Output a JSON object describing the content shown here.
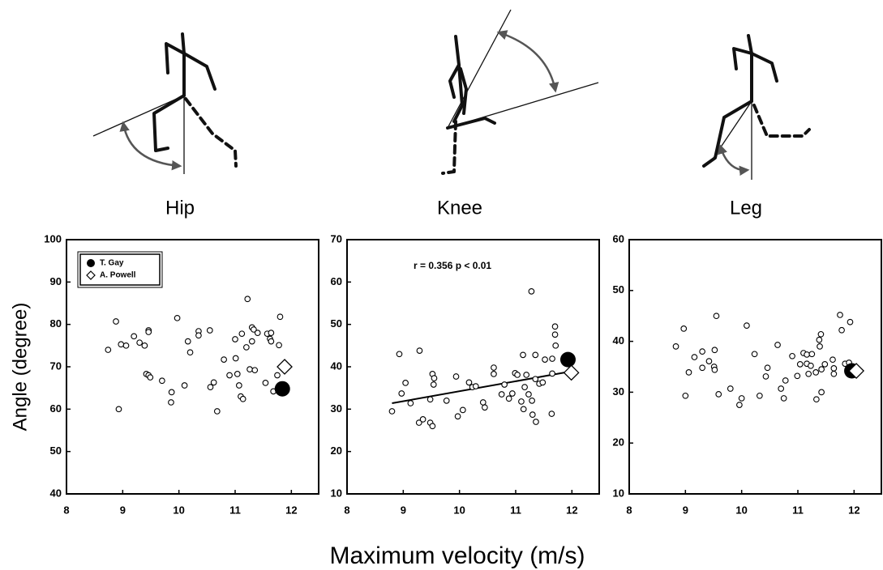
{
  "chart_data": [
    {
      "type": "scatter",
      "title": "Hip",
      "ylabel": "Angle (degree)",
      "legend": "upper left",
      "xlim": [
        8,
        12.5
      ],
      "xticks": [
        8,
        9,
        10,
        11,
        12
      ],
      "ylim": [
        40,
        100
      ],
      "yticks": [
        40,
        50,
        60,
        70,
        80,
        90,
        100
      ],
      "series": [
        {
          "marker": "open-circle",
          "color": "#000000",
          "x": [
            8.74,
            8.88,
            8.93,
            8.97,
            9.06,
            9.2,
            9.3,
            9.39,
            9.46,
            9.46,
            9.42,
            9.46,
            9.49,
            9.7,
            9.87,
            9.86,
            9.97,
            10.1,
            10.16,
            10.2,
            10.35,
            10.35,
            10.55,
            10.56,
            10.62,
            10.68,
            10.8,
            10.9,
            11,
            11.01,
            11.04,
            11.1,
            11.14,
            11.07,
            11.12,
            11.2,
            11.22,
            11.26,
            11.3,
            11.3,
            11.33,
            11.35,
            11.4,
            11.54,
            11.57,
            11.64,
            11.62,
            11.64,
            11.68,
            11.75,
            11.8,
            11.78
          ],
          "y": [
            74,
            80.7,
            60,
            75.3,
            75,
            77.2,
            75.7,
            75,
            78.6,
            78.2,
            68.3,
            68,
            67.5,
            66.7,
            64,
            61.6,
            81.5,
            65.6,
            76,
            73.4,
            78.4,
            77.4,
            78.6,
            65.2,
            66.3,
            59.5,
            71.7,
            68,
            76.5,
            72,
            68.3,
            63,
            62.4,
            65.6,
            77.8,
            74.6,
            86,
            69.4,
            76,
            79.3,
            78.8,
            69.2,
            78,
            66.2,
            77.8,
            78,
            76.6,
            76,
            64.2,
            68,
            81.8,
            75.1
          ]
        },
        {
          "name": "T. Gay",
          "marker": "filled-circle",
          "color": "#000000",
          "x": [
            11.84
          ],
          "y": [
            64.8
          ]
        },
        {
          "name": "A. Powell",
          "marker": "diamond",
          "color": "#000000",
          "x": [
            11.88
          ],
          "y": [
            70
          ]
        }
      ]
    },
    {
      "type": "scatter",
      "title": "Knee",
      "xlabel": "Maximum velocity (m/s)",
      "annotation": "r = 0.356  p < 0.01",
      "xlim": [
        8,
        12.5
      ],
      "xticks": [
        8,
        9,
        10,
        11,
        12
      ],
      "ylim": [
        10,
        70
      ],
      "yticks": [
        10,
        20,
        30,
        40,
        50,
        60,
        70
      ],
      "trendline": {
        "x": [
          8.8,
          11.94
        ],
        "y": [
          31.4,
          38.8
        ]
      },
      "series": [
        {
          "marker": "open-circle",
          "color": "#000000",
          "x": [
            8.8,
            8.93,
            8.97,
            9.04,
            9.13,
            9.28,
            9.29,
            9.35,
            9.48,
            9.52,
            9.52,
            9.54,
            9.55,
            9.48,
            9.77,
            9.94,
            9.97,
            10.06,
            10.17,
            10.23,
            10.29,
            10.42,
            10.45,
            10.61,
            10.61,
            10.75,
            10.8,
            10.88,
            10.94,
            10.99,
            11.03,
            11.13,
            11.16,
            11.1,
            11.14,
            11.19,
            11.28,
            11.23,
            11.29,
            11.3,
            11.36,
            11.35,
            11.35,
            11.42,
            11.48,
            11.52,
            11.64,
            11.7,
            11.7,
            11.71,
            11.65,
            11.65
          ],
          "y": [
            29.5,
            43,
            33.7,
            36.2,
            31.4,
            26.8,
            43.8,
            27.6,
            26.8,
            26,
            38.3,
            35.8,
            37.3,
            32.3,
            32,
            37.7,
            28.3,
            29.8,
            36.3,
            35.2,
            35.4,
            31.6,
            30.4,
            38.3,
            39.8,
            33.5,
            35.8,
            32.5,
            33.7,
            38.5,
            38.1,
            42.8,
            35.2,
            31.8,
            30,
            38.1,
            57.8,
            33.5,
            32,
            28.7,
            27,
            37.1,
            42.8,
            36,
            36.3,
            41.7,
            28.9,
            49.5,
            47.6,
            45,
            41.9,
            38.4
          ]
        },
        {
          "marker": "filled-circle",
          "color": "#000000",
          "x": [
            11.93
          ],
          "y": [
            41.7
          ]
        },
        {
          "marker": "diamond",
          "color": "#000000",
          "x": [
            11.99
          ],
          "y": [
            38.6
          ]
        }
      ]
    },
    {
      "type": "scatter",
      "title": "Leg",
      "xlim": [
        8,
        12.5
      ],
      "xticks": [
        8,
        9,
        10,
        11,
        12
      ],
      "ylim": [
        10,
        60
      ],
      "yticks": [
        10,
        20,
        30,
        40,
        50,
        60
      ],
      "series": [
        {
          "marker": "open-circle",
          "color": "#000000",
          "x": [
            8.83,
            8.97,
            9,
            9.06,
            9.16,
            9.3,
            9.3,
            9.42,
            9.52,
            9.51,
            9.52,
            9.55,
            9.59,
            9.8,
            9.96,
            10,
            10.09,
            10.23,
            10.32,
            10.43,
            10.46,
            10.64,
            10.7,
            10.75,
            10.78,
            10.9,
            10.99,
            11.04,
            11.1,
            11.16,
            11.16,
            11.19,
            11.23,
            11.25,
            11.32,
            11.33,
            11.38,
            11.41,
            11.39,
            11.42,
            11.42,
            11.48,
            11.62,
            11.64,
            11.64,
            11.75,
            11.78,
            11.84,
            11.93,
            11.91
          ],
          "y": [
            39,
            42.5,
            29.3,
            33.9,
            36.9,
            38,
            34.8,
            36.1,
            38.3,
            35,
            34.4,
            45,
            29.6,
            30.7,
            27.5,
            28.8,
            43.1,
            37.5,
            29.3,
            33.1,
            34.8,
            39.3,
            30.7,
            28.8,
            32.3,
            37.1,
            33.2,
            35.5,
            37.7,
            37.4,
            35.6,
            33.6,
            35.2,
            37.5,
            33.9,
            28.6,
            40.3,
            41.4,
            39,
            34.5,
            30,
            35.5,
            36.4,
            34.7,
            33.6,
            45.2,
            42.2,
            35.6,
            43.8,
            35.8
          ]
        },
        {
          "marker": "filled-circle",
          "color": "#000000",
          "x": [
            11.96
          ],
          "y": [
            34.2
          ]
        },
        {
          "marker": "diamond",
          "color": "#000000",
          "x": [
            12.04
          ],
          "y": [
            34.2
          ]
        }
      ]
    }
  ]
}
